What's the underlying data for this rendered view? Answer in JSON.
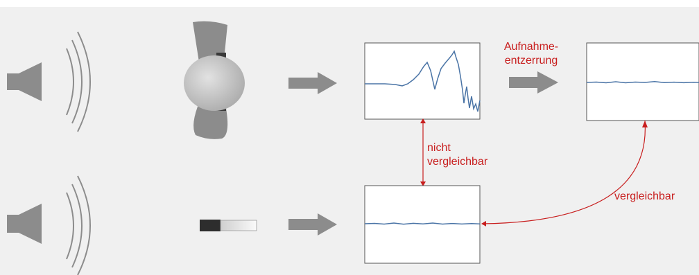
{
  "labels": {
    "aufnahme_line1": "Aufnahme-",
    "aufnahme_line2": "entzerrung",
    "nicht_line1": "nicht",
    "nicht_line2": "vergleichbar",
    "vergleichbar": "vergleichbar"
  },
  "colors": {
    "background": "#f0f0f0",
    "label": "#c81e1e",
    "signal": "#4a74a6",
    "arrow_gray": "#8c8c8c",
    "speaker": "#8c8c8c"
  },
  "icons": {
    "speaker_top": "speaker-icon",
    "speaker_bottom": "speaker-icon",
    "head": "head-with-ear-microphones-icon",
    "microphone": "measurement-microphone-icon"
  }
}
